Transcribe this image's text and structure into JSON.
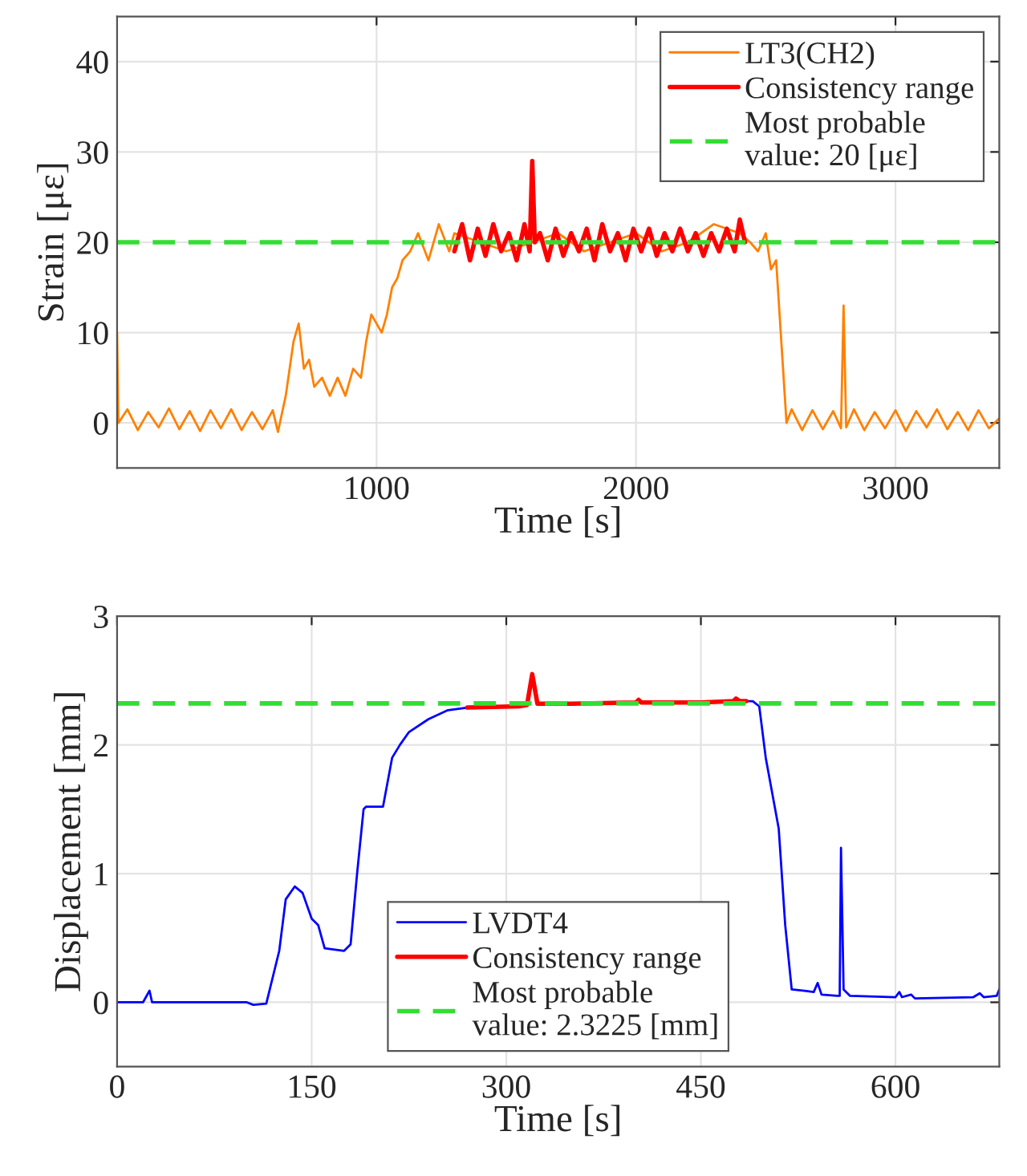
{
  "chart_data": [
    {
      "type": "line",
      "xlabel": "Time [s]",
      "ylabel": "Strain [με]",
      "xlim": [
        0,
        3400
      ],
      "ylim": [
        -5,
        45
      ],
      "xticks": [
        1000,
        2000,
        3000
      ],
      "yticks": [
        0,
        10,
        20,
        30,
        40
      ],
      "grid": true,
      "legend": "top right",
      "line_style": "solid",
      "marker": "none",
      "series": [
        {
          "name": "LT3(CH2)",
          "color": "#ff8000",
          "x": [
            0,
            5,
            40,
            80,
            120,
            160,
            200,
            240,
            280,
            320,
            360,
            400,
            440,
            480,
            520,
            560,
            600,
            620,
            650,
            680,
            700,
            720,
            740,
            760,
            790,
            820,
            850,
            880,
            910,
            940,
            960,
            980,
            1000,
            1020,
            1040,
            1060,
            1080,
            1100,
            1130,
            1160,
            1200,
            1240,
            1280,
            1300,
            1400,
            1500,
            1600,
            1700,
            1800,
            1900,
            2000,
            2100,
            2200,
            2300,
            2400,
            2440,
            2470,
            2500,
            2520,
            2540,
            2560,
            2580,
            2600,
            2640,
            2680,
            2720,
            2760,
            2790,
            2800,
            2810,
            2840,
            2880,
            2920,
            2960,
            3000,
            3040,
            3080,
            3120,
            3160,
            3200,
            3240,
            3280,
            3320,
            3360,
            3400
          ],
          "values": [
            10,
            0,
            1.5,
            -0.8,
            1.2,
            -0.5,
            1.6,
            -0.7,
            1.3,
            -0.9,
            1.4,
            -0.6,
            1.5,
            -0.8,
            1.2,
            -0.7,
            1.4,
            -1,
            3,
            9,
            11,
            6,
            7,
            4,
            5,
            3,
            5,
            3,
            6,
            5,
            9,
            12,
            11,
            10,
            12,
            15,
            16,
            18,
            19,
            21,
            18,
            22,
            19,
            21,
            20,
            19,
            20,
            21,
            19,
            20,
            21,
            19,
            20,
            22,
            21,
            20,
            19,
            21,
            17,
            18,
            9,
            0,
            1.5,
            -0.8,
            1.4,
            -0.7,
            1.3,
            -0.6,
            13,
            -0.5,
            1.5,
            -0.8,
            1.2,
            -0.6,
            1.4,
            -0.9,
            1.3,
            -0.5,
            1.5,
            -0.7,
            1.2,
            -0.8,
            1.4,
            -0.6,
            0.5
          ]
        },
        {
          "name": "Consistency range",
          "color": "#ff0000",
          "x": [
            1300,
            1330,
            1360,
            1390,
            1420,
            1450,
            1480,
            1510,
            1540,
            1570,
            1590,
            1600,
            1610,
            1630,
            1660,
            1690,
            1720,
            1750,
            1780,
            1810,
            1840,
            1870,
            1900,
            1930,
            1960,
            1990,
            2020,
            2050,
            2080,
            2110,
            2140,
            2170,
            2200,
            2230,
            2260,
            2290,
            2320,
            2350,
            2380,
            2400,
            2420
          ],
          "values": [
            19,
            22,
            18,
            21.5,
            18.5,
            22,
            19,
            21,
            18,
            22,
            19,
            29,
            20,
            21,
            18,
            21.5,
            18.5,
            21,
            19,
            21.5,
            18,
            22,
            19,
            21,
            18,
            21.5,
            19,
            21.5,
            18.5,
            21,
            19,
            21.5,
            19,
            21,
            18.5,
            21,
            19,
            21.5,
            19,
            22.5,
            20
          ]
        }
      ],
      "ref_lines": [
        {
          "axis": "y",
          "value": 20,
          "label": "Most probable\nvalue: 20 [με]",
          "color": "#33dd33",
          "line_style": "dashed"
        }
      ]
    },
    {
      "type": "line",
      "xlabel": "Time [s]",
      "ylabel": "Displacement [mm]",
      "xlim": [
        0,
        680
      ],
      "ylim": [
        -0.5,
        3
      ],
      "xticks": [
        0,
        150,
        300,
        450,
        600
      ],
      "yticks": [
        0,
        1,
        2,
        3
      ],
      "grid": true,
      "legend": "bottom",
      "line_style": "solid",
      "marker": "none",
      "series": [
        {
          "name": "LVDT4",
          "color": "#0000ff",
          "x": [
            0,
            20,
            25,
            27,
            100,
            105,
            115,
            125,
            130,
            137,
            143,
            150,
            155,
            160,
            175,
            180,
            185,
            190,
            192,
            205,
            212,
            218,
            225,
            240,
            255,
            270,
            310,
            320,
            340,
            400,
            450,
            485,
            490,
            495,
            500,
            510,
            515,
            520,
            530,
            537,
            540,
            543,
            555,
            557,
            558,
            560,
            565,
            600,
            603,
            605,
            612,
            615,
            660,
            665,
            668,
            678,
            680
          ],
          "values": [
            0,
            0,
            0.09,
            0,
            0,
            -0.02,
            -0.01,
            0.4,
            0.8,
            0.9,
            0.85,
            0.65,
            0.6,
            0.42,
            0.4,
            0.45,
            1.0,
            1.5,
            1.52,
            1.52,
            1.9,
            2.0,
            2.1,
            2.2,
            2.27,
            2.29,
            null,
            null,
            null,
            null,
            null,
            2.34,
            2.34,
            2.3,
            1.9,
            1.35,
            0.6,
            0.1,
            0.09,
            0.08,
            0.15,
            0.06,
            0.05,
            0.05,
            1.2,
            0.1,
            0.05,
            0.04,
            0.08,
            0.04,
            0.06,
            0.03,
            0.04,
            0.07,
            0.04,
            0.05,
            0.1
          ]
        },
        {
          "name": "Consistency range",
          "color": "#ff0000",
          "x": [
            270,
            310,
            316,
            320,
            324,
            350,
            400,
            402,
            404,
            450,
            475,
            477,
            480,
            485
          ],
          "values": [
            2.29,
            2.3,
            2.31,
            2.55,
            2.32,
            2.32,
            2.33,
            2.35,
            2.33,
            2.33,
            2.34,
            2.36,
            2.34,
            2.34
          ]
        }
      ],
      "ref_lines": [
        {
          "axis": "y",
          "value": 2.3225,
          "label": "Most probable\nvalue: 2.3225 [mm]",
          "color": "#33dd33",
          "line_style": "dashed"
        }
      ]
    }
  ]
}
